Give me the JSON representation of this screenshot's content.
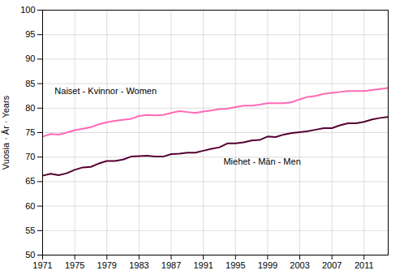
{
  "chart_data": {
    "type": "line",
    "ylabel": "Vuosia · År · Years",
    "x": [
      1971,
      1972,
      1973,
      1974,
      1975,
      1976,
      1977,
      1978,
      1979,
      1980,
      1981,
      1982,
      1983,
      1984,
      1985,
      1986,
      1987,
      1988,
      1989,
      1990,
      1991,
      1992,
      1993,
      1994,
      1995,
      1996,
      1997,
      1998,
      1999,
      2000,
      2001,
      2002,
      2003,
      2004,
      2005,
      2006,
      2007,
      2008,
      2009,
      2010,
      2011,
      2012,
      2013,
      2014
    ],
    "series": [
      {
        "color": "#FF69B4",
        "values": [
          74.2,
          74.7,
          74.6,
          75.0,
          75.5,
          75.8,
          76.1,
          76.7,
          77.1,
          77.4,
          77.6,
          77.8,
          78.4,
          78.6,
          78.5,
          78.6,
          79.0,
          79.4,
          79.2,
          79.0,
          79.3,
          79.5,
          79.8,
          79.9,
          80.2,
          80.5,
          80.5,
          80.7,
          81.0,
          81.0,
          81.0,
          81.2,
          81.8,
          82.3,
          82.5,
          82.9,
          83.1,
          83.3,
          83.5,
          83.5,
          83.5,
          83.7,
          83.9,
          84.1
        ]
      },
      {
        "color": "#550033",
        "values": [
          66.2,
          66.6,
          66.3,
          66.7,
          67.4,
          67.9,
          68.0,
          68.7,
          69.2,
          69.2,
          69.5,
          70.1,
          70.2,
          70.3,
          70.1,
          70.1,
          70.6,
          70.7,
          70.9,
          70.9,
          71.3,
          71.7,
          72.0,
          72.8,
          72.8,
          73.0,
          73.4,
          73.5,
          74.2,
          74.1,
          74.6,
          74.9,
          75.1,
          75.3,
          75.6,
          75.9,
          75.9,
          76.5,
          76.9,
          76.9,
          77.2,
          77.7,
          78.0,
          78.2
        ]
      }
    ],
    "annotations": [
      {
        "text": "Naiset - Kvinnor - Women",
        "x": 1972.5,
        "y": 84.2
      },
      {
        "text": "Miehet - Män - Men",
        "x": 1993.5,
        "y": 69.8
      }
    ],
    "xlim": [
      1971,
      2014
    ],
    "xticks": [
      1971,
      1975,
      1979,
      1983,
      1987,
      1991,
      1995,
      1999,
      2003,
      2007,
      2011
    ],
    "ylim": [
      50,
      100
    ],
    "yticks": [
      50,
      55,
      60,
      65,
      70,
      75,
      80,
      85,
      90,
      95,
      100
    ],
    "grid": true
  }
}
